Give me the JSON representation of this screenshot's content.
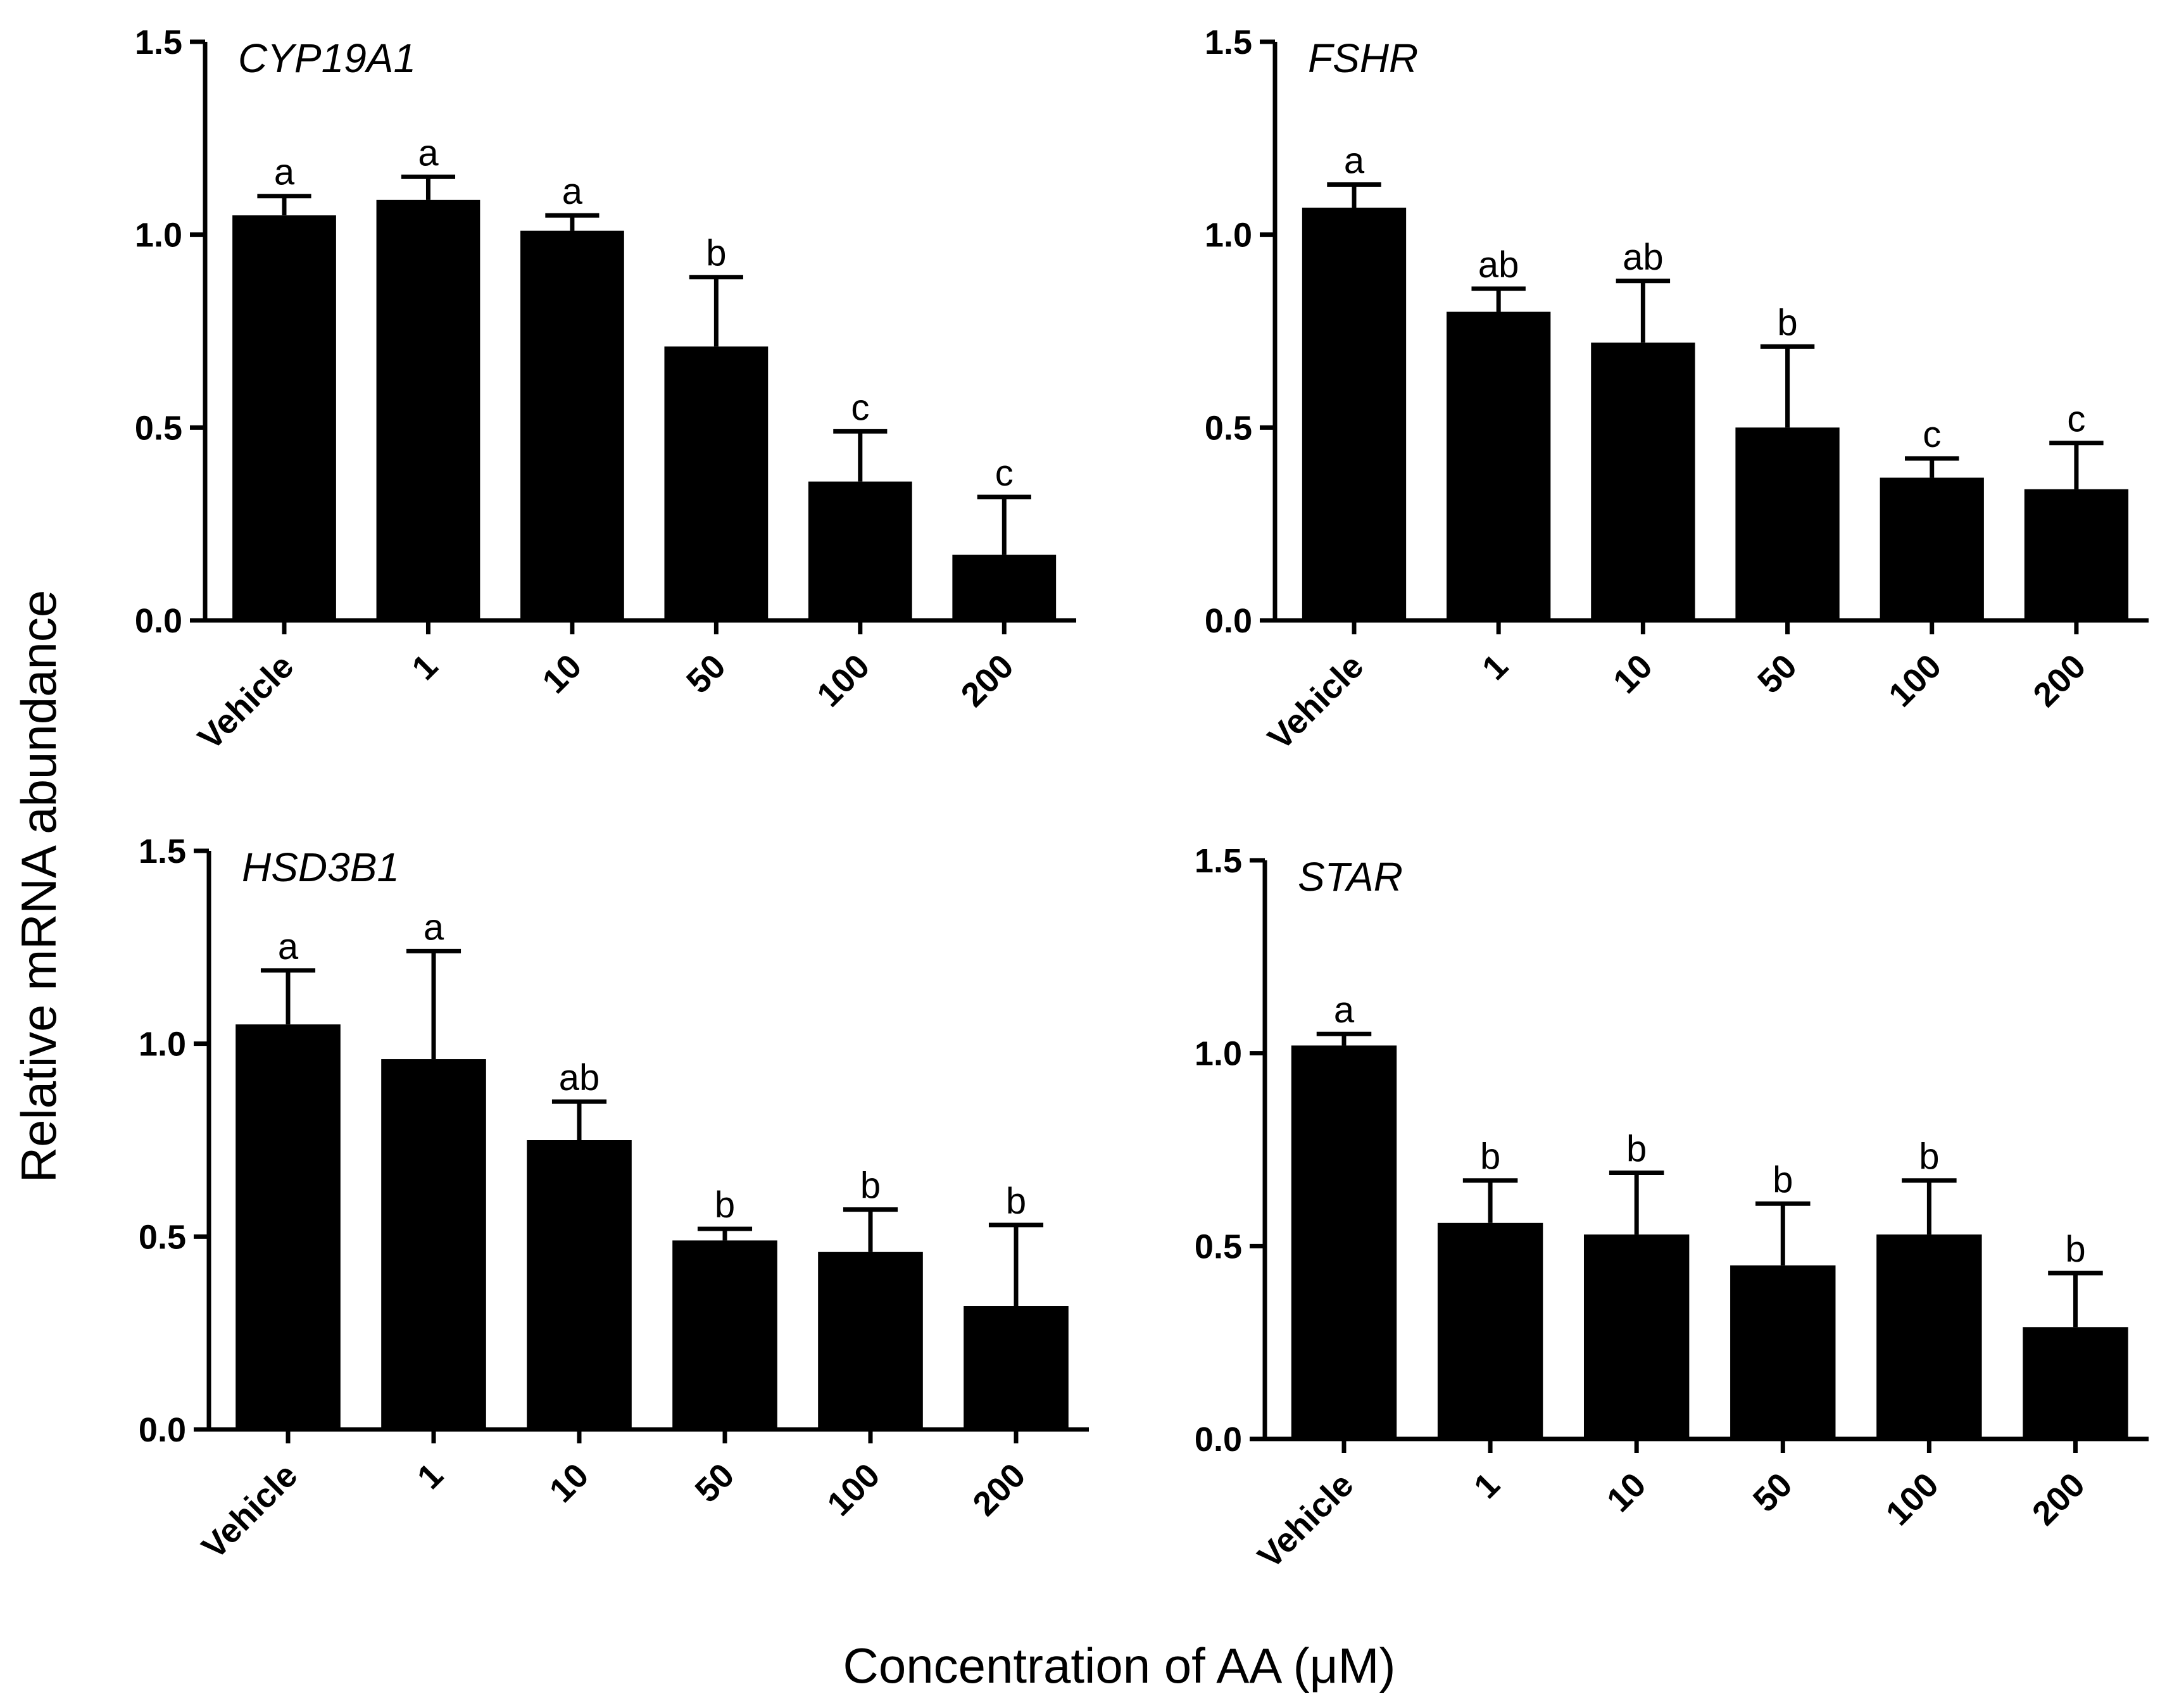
{
  "figure": {
    "ylabel": "Relative mRNA abundance",
    "xlabel": "Concentration of AA (μM)"
  },
  "chart_data": [
    {
      "type": "bar",
      "title": "CYP19A1",
      "categories": [
        "Vehicle",
        "1",
        "10",
        "50",
        "100",
        "200"
      ],
      "values": [
        1.05,
        1.09,
        1.01,
        0.71,
        0.36,
        0.17
      ],
      "error_upper": [
        1.1,
        1.15,
        1.05,
        0.89,
        0.49,
        0.32
      ],
      "significance": [
        "a",
        "a",
        "a",
        "b",
        "c",
        "c"
      ],
      "ylim": [
        0,
        1.5
      ],
      "yticks": [
        "0.0",
        "0.5",
        "1.0",
        "1.5"
      ],
      "colors": {
        "bar": "#000000"
      }
    },
    {
      "type": "bar",
      "title": "FSHR",
      "categories": [
        "Vehicle",
        "1",
        "10",
        "50",
        "100",
        "200"
      ],
      "values": [
        1.07,
        0.8,
        0.72,
        0.5,
        0.37,
        0.34
      ],
      "error_upper": [
        1.13,
        0.86,
        0.88,
        0.71,
        0.42,
        0.46
      ],
      "significance": [
        "a",
        "ab",
        "ab",
        "b",
        "c",
        "c"
      ],
      "ylim": [
        0,
        1.5
      ],
      "yticks": [
        "0.0",
        "0.5",
        "1.0",
        "1.5"
      ],
      "colors": {
        "bar": "#000000"
      }
    },
    {
      "type": "bar",
      "title": "HSD3B1",
      "categories": [
        "Vehicle",
        "1",
        "10",
        "50",
        "100",
        "200"
      ],
      "values": [
        1.05,
        0.96,
        0.75,
        0.49,
        0.46,
        0.32
      ],
      "error_upper": [
        1.19,
        1.24,
        0.85,
        0.52,
        0.57,
        0.53
      ],
      "significance": [
        "a",
        "a",
        "ab",
        "b",
        "b",
        "b"
      ],
      "ylim": [
        0,
        1.5
      ],
      "yticks": [
        "0.0",
        "0.5",
        "1.0",
        "1.5"
      ],
      "colors": {
        "bar": "#000000"
      }
    },
    {
      "type": "bar",
      "title": "STAR",
      "categories": [
        "Vehicle",
        "1",
        "10",
        "50",
        "100",
        "200"
      ],
      "values": [
        1.02,
        0.56,
        0.53,
        0.45,
        0.53,
        0.29
      ],
      "error_upper": [
        1.05,
        0.67,
        0.69,
        0.61,
        0.67,
        0.43
      ],
      "significance": [
        "a",
        "b",
        "b",
        "b",
        "b",
        "b"
      ],
      "ylim": [
        0,
        1.5
      ],
      "yticks": [
        "0.0",
        "0.5",
        "1.0",
        "1.5"
      ],
      "colors": {
        "bar": "#000000"
      }
    }
  ]
}
